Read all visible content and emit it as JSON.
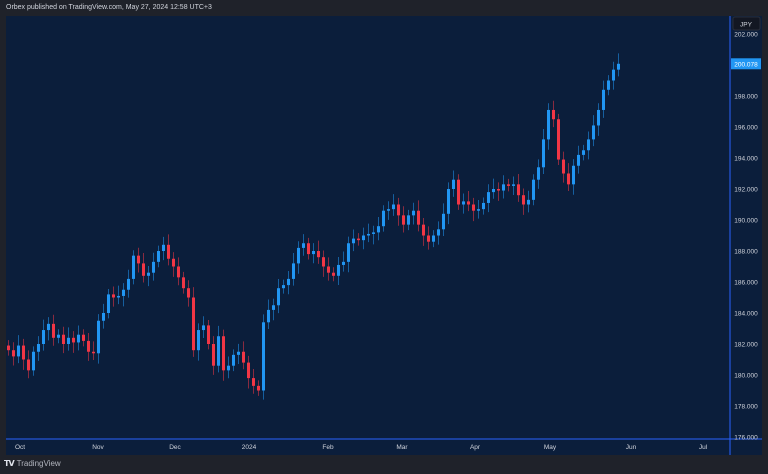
{
  "header": {
    "published": "Orbex published on TradingView.com, May 27, 2024 12:58 UTC+3"
  },
  "footer": {
    "brand": "TradingView",
    "logo_text": "TV"
  },
  "price_axis": {
    "currency": "JPY",
    "labels": [
      "202.000",
      "198.000",
      "196.000",
      "194.000",
      "192.000",
      "190.000",
      "188.000",
      "186.000",
      "184.000",
      "182.000",
      "180.000",
      "178.000",
      "176.000"
    ],
    "last_price": "200.078"
  },
  "time_axis": {
    "labels": [
      "Oct",
      "Nov",
      "Dec",
      "2024",
      "Feb",
      "Mar",
      "Apr",
      "May",
      "Jun",
      "Jul"
    ]
  },
  "colors": {
    "background": "#0b1e3b",
    "frame": "#1f222a",
    "axis_line": "#2962ff",
    "up": "#2196f3",
    "down": "#f23645",
    "last_price_bg": "#2196f3"
  },
  "chart_data": {
    "type": "candlestick",
    "symbol_currency": "JPY",
    "ylim": [
      176,
      203
    ],
    "x_range": [
      "Oct 2023",
      "Jul 2024"
    ],
    "closes": [
      181.6,
      181.2,
      181.9,
      181.0,
      180.3,
      181.5,
      182.0,
      182.9,
      183.3,
      182.4,
      182.6,
      182.0,
      182.4,
      182.1,
      182.6,
      182.2,
      181.5,
      181.4,
      183.5,
      184.0,
      185.2,
      185.0,
      185.1,
      185.5,
      186.2,
      187.7,
      187.2,
      186.4,
      186.6,
      187.3,
      188.0,
      188.4,
      187.5,
      187.0,
      186.3,
      185.6,
      185.0,
      181.6,
      182.9,
      183.2,
      182.0,
      180.6,
      182.5,
      180.3,
      180.6,
      181.3,
      181.5,
      180.8,
      179.8,
      179.3,
      179.0,
      183.4,
      184.2,
      184.5,
      185.6,
      185.8,
      186.2,
      187.2,
      188.2,
      188.5,
      187.8,
      188.0,
      187.6,
      187.0,
      186.6,
      186.4,
      187.1,
      187.3,
      188.5,
      188.8,
      188.7,
      189.0,
      189.1,
      189.2,
      189.6,
      190.6,
      190.7,
      191.0,
      190.3,
      189.7,
      190.3,
      190.6,
      189.7,
      189.0,
      188.6,
      189.0,
      189.4,
      190.4,
      192.0,
      192.6,
      191.0,
      191.2,
      191.0,
      190.6,
      190.7,
      191.1,
      191.8,
      192.0,
      191.9,
      192.3,
      192.2,
      192.3,
      191.6,
      191.0,
      191.3,
      192.6,
      193.4,
      195.2,
      197.1,
      196.5,
      193.9,
      193.0,
      192.3,
      193.5,
      194.2,
      194.5,
      195.2,
      196.1,
      197.1,
      198.4,
      199.0,
      199.7,
      200.078
    ],
    "last": 200.078
  }
}
